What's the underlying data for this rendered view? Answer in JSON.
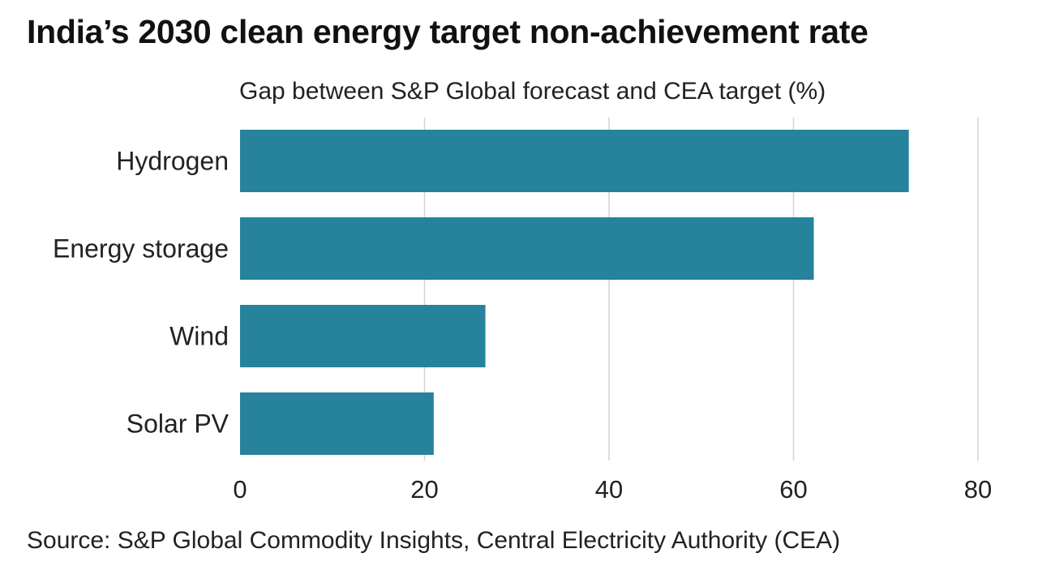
{
  "chart_data": {
    "type": "bar",
    "orientation": "horizontal",
    "title": "India’s 2030 clean energy target non-achievement rate",
    "subtitle": "Gap between S&P Global forecast and CEA target (%)",
    "categories": [
      "Hydrogen",
      "Energy storage",
      "Wind",
      "Solar PV"
    ],
    "values": [
      72.5,
      62.2,
      26.6,
      21.0
    ],
    "xlim": [
      0,
      80
    ],
    "xticks": [
      "0",
      "20",
      "40",
      "60",
      "80"
    ],
    "grid": true,
    "legend": "none",
    "bar_color": "#27839b",
    "grid_color": "#d4d4d4",
    "source": "Source: S&P Global Commodity Insights, Central Electricity Authority (CEA)"
  }
}
